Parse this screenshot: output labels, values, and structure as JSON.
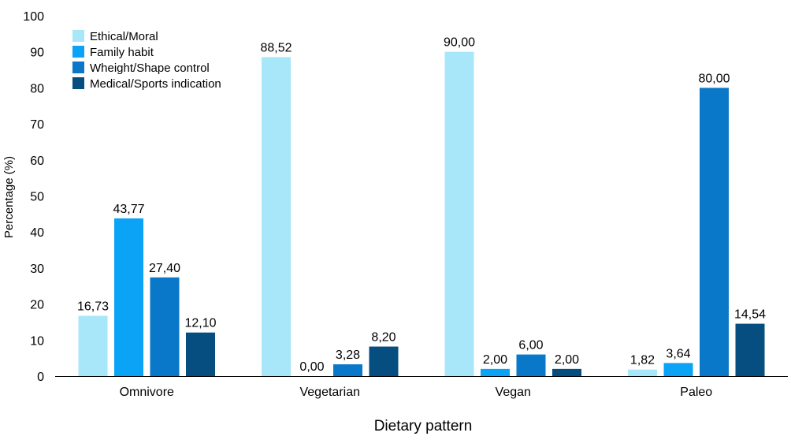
{
  "chart_data": {
    "type": "bar",
    "xlabel": "Dietary pattern",
    "ylabel": "Percentage (%)",
    "ylim": [
      0,
      100
    ],
    "yticks": [
      0,
      10,
      20,
      30,
      40,
      50,
      60,
      70,
      80,
      90,
      100
    ],
    "grid": false,
    "legend_position": "top-left",
    "categories": [
      "Omnivore",
      "Vegetarian",
      "Vegan",
      "Paleo"
    ],
    "series": [
      {
        "name": "Ethical/Moral",
        "color": "#a8e6fa",
        "values": [
          16.73,
          88.52,
          90.0,
          1.82
        ],
        "labels": [
          "16,73",
          "88,52",
          "90,00",
          "1,82"
        ]
      },
      {
        "name": "Family habit",
        "color": "#0aa3f5",
        "values": [
          43.77,
          0.0,
          2.0,
          3.64
        ],
        "labels": [
          "43,77",
          "0,00",
          "2,00",
          "3,64"
        ]
      },
      {
        "name": "Wheight/Shape control",
        "color": "#0a78c8",
        "values": [
          27.4,
          3.28,
          6.0,
          80.0
        ],
        "labels": [
          "27,40",
          "3,28",
          "6,00",
          "80,00"
        ]
      },
      {
        "name": "Medical/Sports indication",
        "color": "#064d80",
        "values": [
          12.1,
          8.2,
          2.0,
          14.54
        ],
        "labels": [
          "12,10",
          "8,20",
          "2,00",
          "14,54"
        ]
      }
    ]
  }
}
